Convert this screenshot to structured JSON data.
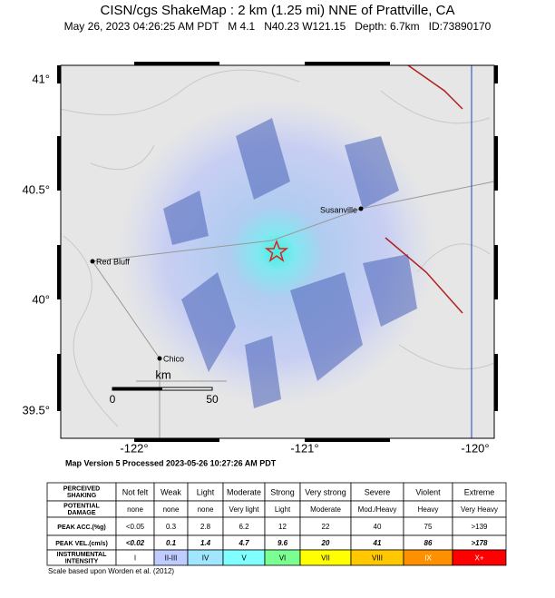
{
  "header": {
    "title": "CISN/cgs ShakeMap : 2 km (1.25 mi) NNE of Prattville, CA",
    "subtitle": "May 26, 2023 04:26:25 AM PDT   M 4.1   N40.23 W121.15   Depth: 6.7km   ID:73890170"
  },
  "map": {
    "lat_ticks": [
      "41°",
      "40.5°",
      "40°",
      "39.5°"
    ],
    "lon_ticks": [
      "-122°",
      "-121°",
      "-120°"
    ],
    "cities": [
      "Susanville",
      "Red Bluff",
      "Chico"
    ],
    "scale": {
      "label": "km",
      "start": "0",
      "end": "50"
    }
  },
  "version_note": "Map Version 5 Processed 2023-05-26 10:27:26 AM PDT",
  "table": {
    "rows": [
      [
        "PERCEIVED SHAKING",
        "Not felt",
        "Weak",
        "Light",
        "Moderate",
        "Strong",
        "Very strong",
        "Severe",
        "Violent",
        "Extreme"
      ],
      [
        "POTENTIAL DAMAGE",
        "none",
        "none",
        "none",
        "Very light",
        "Light",
        "Moderate",
        "Mod./Heavy",
        "Heavy",
        "Very Heavy"
      ],
      [
        "PEAK ACC.(%g)",
        "<0.05",
        "0.3",
        "2.8",
        "6.2",
        "12",
        "22",
        "40",
        "75",
        ">139"
      ],
      [
        "PEAK VEL.(cm/s)",
        "<0.02",
        "0.1",
        "1.4",
        "4.7",
        "9.6",
        "20",
        "41",
        "86",
        ">178"
      ],
      [
        "INSTRUMENTAL INTENSITY",
        "I",
        "II-III",
        "IV",
        "V",
        "VI",
        "VII",
        "VIII",
        "IX",
        "X+"
      ]
    ],
    "intensity_colors": [
      "#ffffff",
      "#bfccff",
      "#a0e6ff",
      "#80ffff",
      "#7aff93",
      "#ffff00",
      "#ffc800",
      "#ff9100",
      "#ff0000",
      "#c80000"
    ]
  },
  "footer": "Scale based upon Worden et al. (2012)"
}
